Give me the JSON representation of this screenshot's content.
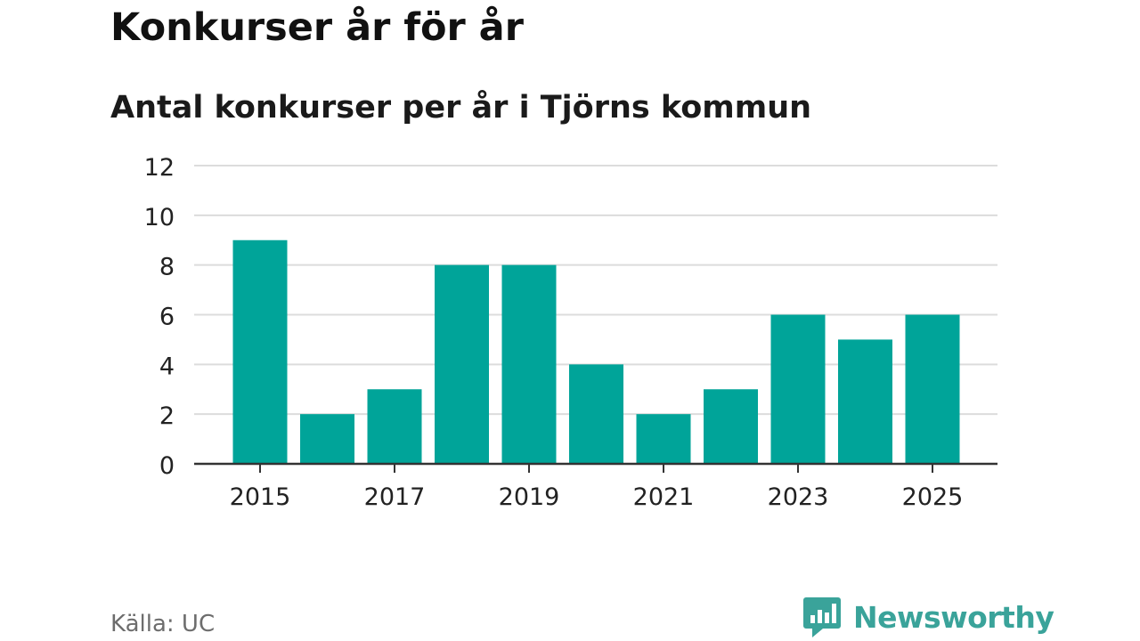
{
  "header": {
    "title": "Konkurser år för år",
    "subtitle": "Antal konkurser per år i Tjörns kommun"
  },
  "footer": {
    "source": "Källa: UC",
    "brand": "Newsworthy",
    "brand_icon": "bar-chart-speech-bubble-icon",
    "brand_color": "#3aa39a"
  },
  "chart_data": {
    "type": "bar",
    "title": "Konkurser år för år",
    "subtitle": "Antal konkurser per år i Tjörns kommun",
    "xlabel": "",
    "ylabel": "",
    "categories": [
      "2015",
      "2016",
      "2017",
      "2018",
      "2019",
      "2020",
      "2021",
      "2022",
      "2023",
      "2024",
      "2025"
    ],
    "values": [
      9,
      2,
      3,
      8,
      8,
      4,
      2,
      3,
      6,
      5,
      6
    ],
    "x_tick_labels": [
      "2015",
      "2017",
      "2019",
      "2021",
      "2023",
      "2025"
    ],
    "y_ticks": [
      0,
      2,
      4,
      6,
      8,
      10,
      12
    ],
    "ylim": [
      0,
      12
    ],
    "grid": true,
    "bar_color": "#00a499",
    "legend": "none"
  }
}
